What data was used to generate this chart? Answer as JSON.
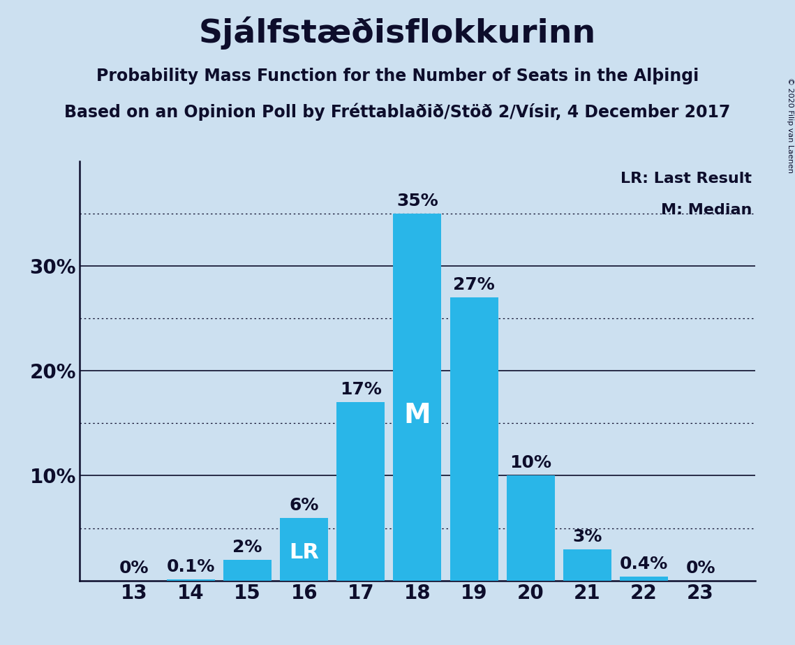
{
  "title": "Sjálfstæðisflokkurinn",
  "subtitle1": "Probability Mass Function for the Number of Seats in the Alþingi",
  "subtitle2": "Based on an Opinion Poll by Fréttablaðið/Stöð 2/Vísir, 4 December 2017",
  "copyright": "© 2020 Filip van Laenen",
  "categories": [
    13,
    14,
    15,
    16,
    17,
    18,
    19,
    20,
    21,
    22,
    23
  ],
  "values": [
    0.0,
    0.1,
    2.0,
    6.0,
    17.0,
    35.0,
    27.0,
    10.0,
    3.0,
    0.4,
    0.0
  ],
  "bar_color": "#29b6e8",
  "background_color": "#cce0f0",
  "label_color": "#0d0d2b",
  "bar_labels": [
    "0%",
    "0.1%",
    "2%",
    "6%",
    "17%",
    "35%",
    "27%",
    "10%",
    "3%",
    "0.4%",
    "0%"
  ],
  "median_bar": 18,
  "lr_bar": 16,
  "median_label": "M",
  "lr_label": "LR",
  "legend_lr": "LR: Last Result",
  "legend_m": "M: Median",
  "major_yticks": [
    10,
    20,
    30
  ],
  "minor_yticks": [
    5,
    15,
    25,
    35
  ],
  "ylim": [
    0,
    40
  ],
  "title_fontsize": 34,
  "subtitle_fontsize": 17,
  "tick_fontsize": 20,
  "bar_label_fontsize": 18,
  "inside_label_fontsize": 22,
  "legend_fontsize": 16,
  "copyright_fontsize": 8
}
